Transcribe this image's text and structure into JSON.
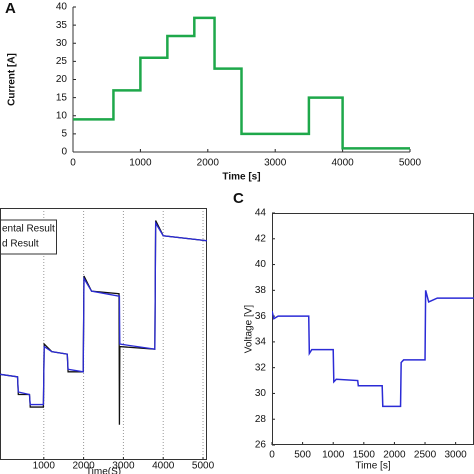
{
  "chart_data": [
    {
      "type": "line",
      "label": "A",
      "xlabel": "Time [s]",
      "ylabel": "Current [A]",
      "x": [
        0,
        600,
        600,
        1000,
        1000,
        1400,
        1400,
        1800,
        1800,
        2100,
        2100,
        2500,
        2500,
        3500,
        3500,
        4000,
        4000,
        5000
      ],
      "series": [
        {
          "name": null,
          "color": "#1ea84a",
          "values": [
            9,
            9,
            17,
            17,
            26,
            26,
            32,
            32,
            37,
            37,
            23,
            23,
            5,
            5,
            15,
            15,
            1,
            1
          ]
        }
      ],
      "xlim": [
        0,
        5000
      ],
      "xticks": [
        0,
        1000,
        2000,
        3000,
        4000,
        5000
      ],
      "ylim": [
        0,
        40
      ],
      "yticks": [
        0,
        5,
        10,
        15,
        20,
        25,
        30,
        35,
        40
      ],
      "grid": false
    },
    {
      "type": "line",
      "xlabel": "Time(S)",
      "x": [
        -100,
        340,
        360,
        640,
        660,
        990,
        1010,
        1200,
        1590,
        1610,
        1990,
        2010,
        2200,
        2890,
        2900,
        2910,
        3790,
        3810,
        4000,
        5100
      ],
      "series": [
        {
          "name": "ental Result",
          "color": "#111111",
          "values": [
            34,
            33,
            26,
            26,
            21,
            21,
            46,
            43,
            42,
            35,
            35,
            73,
            67,
            66,
            14,
            45,
            44,
            95,
            89,
            87
          ]
        },
        {
          "name": "d Result",
          "color": "#2b2bd6",
          "values": [
            34,
            33,
            27,
            26,
            22,
            22,
            45,
            43,
            42,
            36,
            35,
            72,
            67,
            65,
            65,
            46,
            44,
            94,
            89,
            87
          ]
        }
      ],
      "xlim": [
        -100,
        5100
      ],
      "xticks": [
        1000,
        2000,
        3000,
        4000,
        5000
      ],
      "ylim": [
        0,
        100
      ],
      "grid": true,
      "legend": "upper left"
    },
    {
      "type": "line",
      "label": "C",
      "xlabel": "Time [s]",
      "ylabel": "Voltage [V]",
      "x": [
        0,
        30,
        100,
        600,
        610,
        650,
        1000,
        1010,
        1050,
        1400,
        1410,
        1800,
        1810,
        2100,
        2110,
        2150,
        2500,
        2510,
        2560,
        2700,
        3300
      ],
      "series": [
        {
          "name": null,
          "color": "#2b2bd6",
          "values": [
            36.4,
            35.8,
            36.0,
            36.0,
            33.1,
            33.4,
            33.4,
            30.9,
            31.1,
            31.0,
            30.6,
            30.6,
            29.0,
            29.0,
            32.4,
            32.6,
            32.6,
            38.0,
            37.1,
            37.4,
            37.4
          ]
        }
      ],
      "xlim": [
        0,
        3300
      ],
      "xticks": [
        0,
        500,
        1000,
        1500,
        2000,
        2500,
        3000
      ],
      "ylim": [
        26,
        44
      ],
      "yticks": [
        26,
        28,
        30,
        32,
        34,
        36,
        38,
        40,
        42,
        44
      ],
      "grid": false
    }
  ]
}
